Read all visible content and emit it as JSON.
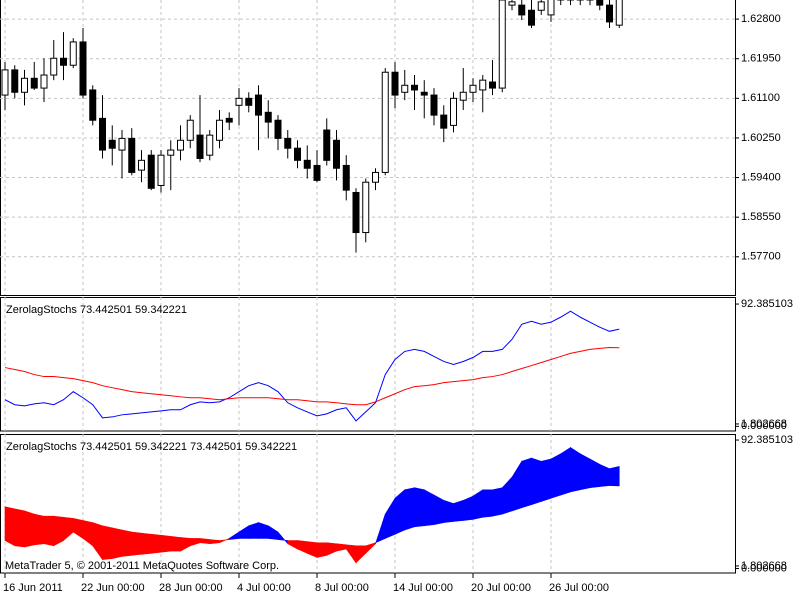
{
  "chart_data": [
    {
      "type": "candlestick",
      "categories": [
        "16 Jun 2011",
        null,
        null,
        null,
        null,
        null,
        null,
        null,
        "22 Jun 00:00",
        null,
        null,
        null,
        null,
        null,
        null,
        null,
        "28 Jun 00:00",
        null,
        null,
        null,
        null,
        null,
        null,
        null,
        "4 Jul 00:00",
        null,
        null,
        null,
        null,
        null,
        null,
        null,
        "8 Jul 00:00",
        null,
        null,
        null,
        null,
        null,
        null,
        null,
        "14 Jul 00:00",
        null,
        null,
        null,
        null,
        null,
        null,
        null,
        "20 Jul 00:00",
        null,
        null,
        null,
        null,
        null,
        null,
        null,
        "26 Jul 00:00",
        null,
        null,
        null,
        null,
        null,
        null,
        null
      ],
      "open": [
        1.6117,
        1.6171,
        1.6123,
        1.6153,
        1.6132,
        1.616,
        1.6196,
        1.6181,
        1.6231,
        1.6128,
        1.6067,
        1.602,
        1.5999,
        1.6024,
        1.5956,
        1.5988,
        1.5923,
        1.5988,
        1.5999,
        1.602,
        1.6031,
        1.5988,
        1.602,
        1.6067,
        1.6095,
        1.611,
        1.6117,
        1.608,
        1.6063,
        1.6024,
        1.6003,
        1.5977,
        1.5966,
        1.6042,
        1.602,
        1.5966,
        1.5908,
        1.5822,
        1.593,
        1.5951,
        1.6166,
        1.6123,
        1.6138,
        1.6123,
        1.6117,
        1.6074,
        1.6052,
        1.6106,
        1.6123,
        1.6128,
        1.6145,
        1.6132,
        1.631,
        1.631,
        1.6299,
        1.6299,
        1.6289,
        1.6332,
        1.6321,
        1.6332,
        1.6321,
        1.6332,
        1.631,
        1.6267
      ],
      "high": [
        1.6188,
        1.6181,
        1.6171,
        1.6188,
        1.6196,
        1.6235,
        1.6252,
        1.6239,
        1.6261,
        1.6138,
        1.6117,
        1.6052,
        1.6042,
        1.6046,
        1.5999,
        1.5999,
        1.5999,
        1.602,
        1.6052,
        1.6074,
        1.6117,
        1.6042,
        1.6085,
        1.608,
        1.6132,
        1.6123,
        1.6138,
        1.6106,
        1.6074,
        1.6042,
        1.602,
        1.6009,
        1.5999,
        1.6067,
        1.6042,
        1.5988,
        1.5917,
        1.5938,
        1.596,
        1.6175,
        1.6188,
        1.6171,
        1.616,
        1.6149,
        1.6132,
        1.6095,
        1.6123,
        1.6175,
        1.6153,
        1.616,
        1.6192,
        1.6343,
        1.6332,
        1.6332,
        1.6321,
        1.6332,
        1.6343,
        1.6343,
        1.6343,
        1.6343,
        1.6343,
        1.6343,
        1.6332,
        1.6343
      ],
      "low": [
        1.6085,
        1.611,
        1.6095,
        1.6128,
        1.6102,
        1.6149,
        1.6149,
        1.6175,
        1.611,
        1.6052,
        1.5981,
        1.5966,
        1.5938,
        1.5945,
        1.593,
        1.5913,
        1.5908,
        1.5913,
        1.5977,
        1.6003,
        1.5973,
        1.5977,
        1.6003,
        1.6042,
        1.6052,
        1.608,
        1.5999,
        1.6024,
        1.5999,
        1.5981,
        1.596,
        1.5938,
        1.593,
        1.5966,
        1.5934,
        1.5891,
        1.5779,
        1.5801,
        1.5913,
        1.5945,
        1.6089,
        1.6106,
        1.6085,
        1.6067,
        1.6052,
        1.6016,
        1.6037,
        1.6085,
        1.6102,
        1.608,
        1.6117,
        1.6123,
        1.6299,
        1.6278,
        1.6261,
        1.6289,
        1.6274,
        1.631,
        1.631,
        1.631,
        1.631,
        1.6299,
        1.6261,
        1.6261
      ],
      "close": [
        1.6171,
        1.6123,
        1.6153,
        1.6132,
        1.616,
        1.6196,
        1.6181,
        1.6231,
        1.6117,
        1.6063,
        1.5999,
        1.6003,
        1.6024,
        1.5951,
        1.5977,
        1.5917,
        1.5988,
        1.5999,
        1.602,
        1.6063,
        1.5981,
        1.6031,
        1.6063,
        1.6059,
        1.611,
        1.6095,
        1.6074,
        1.6059,
        1.6024,
        1.6003,
        1.5977,
        1.596,
        1.5934,
        1.5977,
        1.596,
        1.5913,
        1.5822,
        1.593,
        1.5951,
        1.6166,
        1.6117,
        1.6138,
        1.6128,
        1.6117,
        1.6074,
        1.6046,
        1.611,
        1.6123,
        1.6138,
        1.6149,
        1.6132,
        1.6321,
        1.6317,
        1.6289,
        1.6267,
        1.6317,
        1.6332,
        1.6321,
        1.6332,
        1.6321,
        1.6332,
        1.631,
        1.6274,
        1.6332
      ],
      "up_color": "#ffffff",
      "down_color": "#000000",
      "outline_color": "#000000",
      "ylim": [
        1.5688,
        1.6321
      ],
      "yticks": [
        {
          "value": 1.628,
          "label": "1.62800"
        },
        {
          "value": 1.6195,
          "label": "1.61950"
        },
        {
          "value": 1.611,
          "label": "1.61100"
        },
        {
          "value": 1.6025,
          "label": "1.60250"
        },
        {
          "value": 1.594,
          "label": "1.59400"
        },
        {
          "value": 1.5855,
          "label": "1.58550"
        },
        {
          "value": 1.577,
          "label": "1.57700"
        }
      ],
      "grid": true,
      "xgrid": true
    },
    {
      "type": "line",
      "title": "ZerolagStochs 73.442501 59.342221",
      "series": [
        {
          "color": "#0000ff",
          "values": [
            20.1,
            16.3,
            15.5,
            17.0,
            17.8,
            16.3,
            20.1,
            26.2,
            21.6,
            16.3,
            6.4,
            7.1,
            8.7,
            9.4,
            10.2,
            10.9,
            11.7,
            12.5,
            12.5,
            16.3,
            18.5,
            17.8,
            18.5,
            21.6,
            26.2,
            30.7,
            33.0,
            30.7,
            26.2,
            17.8,
            14.0,
            10.9,
            7.9,
            9.4,
            12.5,
            14.0,
            4.1,
            10.9,
            17.8,
            39.1,
            50.5,
            56.6,
            58.1,
            56.6,
            52.8,
            49.0,
            46.7,
            49.0,
            52.0,
            56.6,
            56.6,
            58.1,
            65.7,
            77.1,
            79.4,
            77.1,
            78.7,
            82.5,
            87.0,
            82.5,
            78.7,
            74.9,
            71.8,
            73.442501
          ]
        },
        {
          "color": "#ff0000",
          "values": [
            44.4,
            42.9,
            41.4,
            39.1,
            37.6,
            37.6,
            36.8,
            36.0,
            34.5,
            33.0,
            30.7,
            29.2,
            27.7,
            26.2,
            25.4,
            24.6,
            23.9,
            23.1,
            22.3,
            21.6,
            21.6,
            20.8,
            20.1,
            20.8,
            21.6,
            21.6,
            21.6,
            21.6,
            20.8,
            20.1,
            20.1,
            19.3,
            18.5,
            18.5,
            17.8,
            17.0,
            16.3,
            16.3,
            18.5,
            21.6,
            24.6,
            27.7,
            30.0,
            30.7,
            31.5,
            33.0,
            33.8,
            34.5,
            35.3,
            36.8,
            37.6,
            39.1,
            41.4,
            43.7,
            45.9,
            48.2,
            50.5,
            52.8,
            55.1,
            56.6,
            58.1,
            58.9,
            59.6,
            59.342221
          ]
        }
      ],
      "ylim": [
        -3.53,
        97.71
      ],
      "yticks": [
        92.385103,
        1.802668,
        {
          "value": 0,
          "label": "0.000000"
        }
      ],
      "grid": false,
      "xgrid": true
    },
    {
      "type": "fill-between",
      "title": "ZerolagStochs 73.442501 59.342221 73.442501 59.342221",
      "series": [
        {
          "color": "#0000ff",
          "values": [
            20.1,
            16.3,
            15.5,
            17.0,
            17.8,
            16.3,
            20.1,
            26.2,
            21.6,
            16.3,
            6.4,
            7.1,
            8.7,
            9.4,
            10.2,
            10.9,
            11.7,
            12.5,
            12.5,
            16.3,
            18.5,
            17.8,
            18.5,
            21.6,
            26.2,
            30.7,
            33.0,
            30.7,
            26.2,
            17.8,
            14.0,
            10.9,
            7.9,
            9.4,
            12.5,
            14.0,
            4.1,
            10.9,
            17.8,
            39.1,
            50.5,
            56.6,
            58.1,
            56.6,
            52.8,
            49.0,
            46.7,
            49.0,
            52.0,
            56.6,
            56.6,
            58.1,
            65.7,
            77.1,
            79.4,
            77.1,
            78.7,
            82.5,
            87.0,
            82.5,
            78.7,
            74.9,
            71.8,
            73.442501
          ]
        },
        {
          "color": "#ff0000",
          "values": [
            44.4,
            42.9,
            41.4,
            39.1,
            37.6,
            37.6,
            36.8,
            36.0,
            34.5,
            33.0,
            30.7,
            29.2,
            27.7,
            26.2,
            25.4,
            24.6,
            23.9,
            23.1,
            22.3,
            21.6,
            21.6,
            20.8,
            20.1,
            20.8,
            21.6,
            21.6,
            21.6,
            21.6,
            20.8,
            20.1,
            20.1,
            19.3,
            18.5,
            18.5,
            17.8,
            17.0,
            16.3,
            16.3,
            18.5,
            21.6,
            24.6,
            27.7,
            30.0,
            30.7,
            31.5,
            33.0,
            33.8,
            34.5,
            35.3,
            36.8,
            37.6,
            39.1,
            41.4,
            43.7,
            45.9,
            48.2,
            50.5,
            52.8,
            55.1,
            56.6,
            58.1,
            58.9,
            59.6,
            59.342221
          ]
        }
      ],
      "ylim": [
        -3.27,
        96.73
      ],
      "yticks": [
        92.385103,
        1.802668,
        {
          "value": 0,
          "label": "0.000000"
        }
      ],
      "grid": false,
      "xgrid": true
    }
  ],
  "copyright": "MetaTrader 5, © 2001-2011 MetaQuotes Software Corp."
}
